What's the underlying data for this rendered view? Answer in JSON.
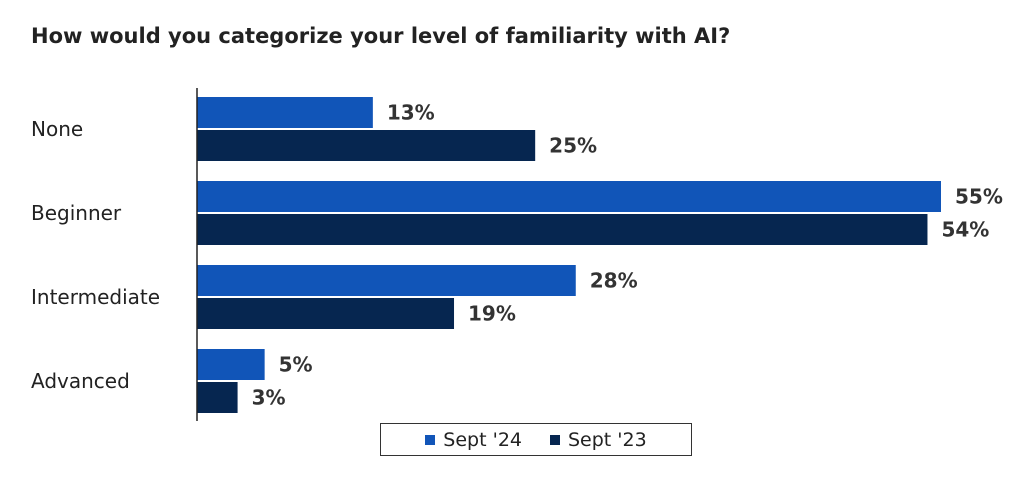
{
  "chart_data": {
    "type": "bar",
    "orientation": "horizontal",
    "title": "How would you categorize your level of familiarity with AI?",
    "categories": [
      "None",
      "Beginner",
      "Intermediate",
      "Advanced"
    ],
    "series": [
      {
        "name": "Sept '24",
        "values": [
          13,
          55,
          28,
          5
        ],
        "labels": [
          "13%",
          "55%",
          "28%",
          "5%"
        ],
        "color": "#1155b8"
      },
      {
        "name": "Sept '23",
        "values": [
          25,
          54,
          19,
          3
        ],
        "labels": [
          "25%",
          "54%",
          "19%",
          "3%"
        ],
        "color": "#062650"
      }
    ],
    "value_unit": "%",
    "xlim": [
      0,
      55
    ],
    "grid": false,
    "legend_position": "bottom"
  }
}
